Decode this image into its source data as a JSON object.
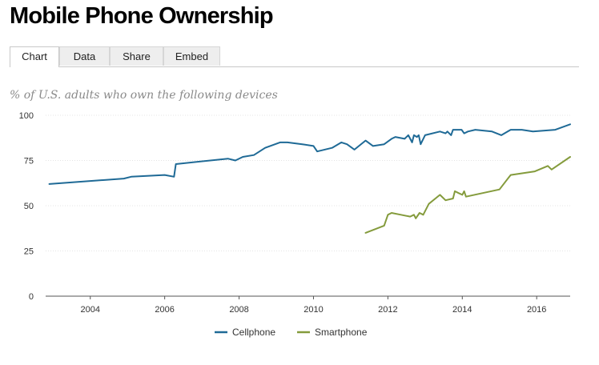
{
  "page": {
    "title": "Mobile Phone Ownership"
  },
  "tabs": [
    {
      "label": "Chart",
      "active": true
    },
    {
      "label": "Data",
      "active": false
    },
    {
      "label": "Share",
      "active": false
    },
    {
      "label": "Embed",
      "active": false
    }
  ],
  "chart_data": {
    "type": "line",
    "title": "",
    "subtitle": "% of U.S. adults who own the following devices",
    "xlabel": "",
    "ylabel": "",
    "xlim": [
      2002.8,
      2016.9
    ],
    "ylim": [
      0,
      100
    ],
    "x_ticks": [
      2004,
      2006,
      2008,
      2010,
      2012,
      2014,
      2016
    ],
    "y_ticks": [
      0,
      25,
      50,
      75,
      100
    ],
    "grid": "horizontal",
    "legend_position": "bottom",
    "colors": {
      "Cellphone": "#1f6a96",
      "Smartphone": "#849b3c"
    },
    "series": [
      {
        "name": "Cellphone",
        "points": [
          [
            2002.9,
            62
          ],
          [
            2004.9,
            65
          ],
          [
            2005.1,
            66
          ],
          [
            2006.0,
            67
          ],
          [
            2006.25,
            66
          ],
          [
            2006.3,
            73
          ],
          [
            2007.7,
            76
          ],
          [
            2007.9,
            75
          ],
          [
            2008.1,
            77
          ],
          [
            2008.4,
            78
          ],
          [
            2008.7,
            82
          ],
          [
            2009.1,
            85
          ],
          [
            2009.3,
            85
          ],
          [
            2009.7,
            84
          ],
          [
            2010.0,
            83
          ],
          [
            2010.1,
            80
          ],
          [
            2010.5,
            82
          ],
          [
            2010.75,
            85
          ],
          [
            2010.9,
            84
          ],
          [
            2011.1,
            81
          ],
          [
            2011.4,
            86
          ],
          [
            2011.6,
            83
          ],
          [
            2011.9,
            84
          ],
          [
            2012.1,
            87
          ],
          [
            2012.2,
            88
          ],
          [
            2012.45,
            87
          ],
          [
            2012.55,
            89
          ],
          [
            2012.65,
            85
          ],
          [
            2012.7,
            89
          ],
          [
            2012.78,
            88
          ],
          [
            2012.83,
            89
          ],
          [
            2012.88,
            84
          ],
          [
            2013.0,
            89
          ],
          [
            2013.4,
            91
          ],
          [
            2013.55,
            90
          ],
          [
            2013.6,
            91
          ],
          [
            2013.7,
            89
          ],
          [
            2013.75,
            92
          ],
          [
            2013.9,
            92
          ],
          [
            2013.98,
            92
          ],
          [
            2014.05,
            90
          ],
          [
            2014.15,
            91
          ],
          [
            2014.35,
            92
          ],
          [
            2014.8,
            91
          ],
          [
            2015.05,
            89
          ],
          [
            2015.3,
            92
          ],
          [
            2015.6,
            92
          ],
          [
            2015.9,
            91
          ],
          [
            2016.5,
            92
          ],
          [
            2016.9,
            95
          ]
        ]
      },
      {
        "name": "Smartphone",
        "points": [
          [
            2011.4,
            35
          ],
          [
            2011.9,
            39
          ],
          [
            2012.0,
            45
          ],
          [
            2012.1,
            46
          ],
          [
            2012.35,
            45
          ],
          [
            2012.6,
            44
          ],
          [
            2012.7,
            45
          ],
          [
            2012.75,
            43
          ],
          [
            2012.85,
            46
          ],
          [
            2012.95,
            45
          ],
          [
            2013.1,
            51
          ],
          [
            2013.4,
            56
          ],
          [
            2013.55,
            53
          ],
          [
            2013.75,
            54
          ],
          [
            2013.8,
            58
          ],
          [
            2013.9,
            57
          ],
          [
            2014.0,
            56
          ],
          [
            2014.05,
            58
          ],
          [
            2014.1,
            55
          ],
          [
            2015.0,
            59
          ],
          [
            2015.3,
            67
          ],
          [
            2015.95,
            69
          ],
          [
            2016.3,
            72
          ],
          [
            2016.4,
            70
          ],
          [
            2016.9,
            77
          ]
        ]
      }
    ]
  }
}
